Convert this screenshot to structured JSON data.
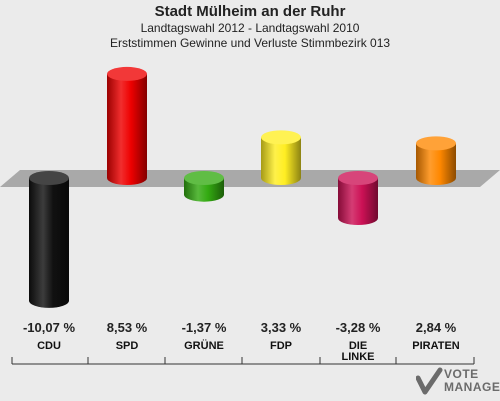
{
  "header": {
    "title": "Stadt Mülheim an der Ruhr",
    "subtitle1": "Landtagswahl 2012 - Landtagswahl 2010",
    "subtitle2": "Erststimmen Gewinne und Verluste Stimmbezirk 013"
  },
  "watermark": {
    "line1": "VOTE",
    "line2": "MANAGER"
  },
  "chart_data": {
    "type": "bar",
    "categories": [
      "CDU",
      "SPD",
      "GRÜNE",
      "FDP",
      "DIE LINKE",
      "PIRATEN"
    ],
    "values": [
      -10.07,
      8.53,
      -1.37,
      3.33,
      -3.28,
      2.84
    ],
    "value_labels": [
      "-10,07 %",
      "8,53 %",
      "-1,37 %",
      "3,33 %",
      "-3,28 %",
      "2,84 %"
    ],
    "colors": [
      "#111111",
      "#ee0000",
      "#33aa11",
      "#ffee22",
      "#cc1155",
      "#ff8800"
    ],
    "ylim": [
      -11,
      9.5
    ],
    "grid": false,
    "legend": "none"
  }
}
